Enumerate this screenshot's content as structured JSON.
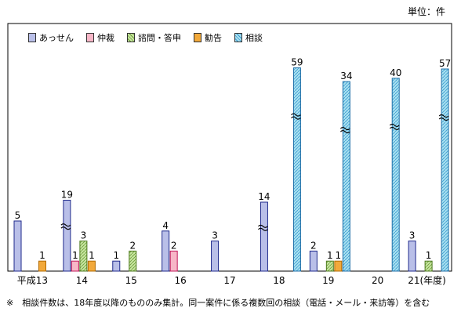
{
  "unit_label": "単位：件",
  "note": "※　相談件数は、18年度以降のもののみ集計。同一案件に係る複数回の相談（電話・メール・来訪等）を含む",
  "legend": [
    {
      "name": "あっせん",
      "color": "#b9bfe8"
    },
    {
      "name": "仲裁",
      "color": "#f7b6c7"
    },
    {
      "name": "諮問・答申",
      "color": "#c8e6a0"
    },
    {
      "name": "勧告",
      "color": "#f2a93b"
    },
    {
      "name": "相談",
      "color": "#a8e0f0"
    }
  ],
  "chart_data": {
    "type": "bar",
    "categories": [
      "平成13",
      "14",
      "15",
      "16",
      "17",
      "18",
      "19",
      "20",
      "21(年度)"
    ],
    "series": [
      {
        "name": "あっせん",
        "values": [
          5,
          19,
          1,
          4,
          3,
          14,
          2,
          null,
          3
        ]
      },
      {
        "name": "仲裁",
        "values": [
          null,
          1,
          null,
          2,
          null,
          null,
          null,
          null,
          null
        ]
      },
      {
        "name": "諮問・答申",
        "values": [
          null,
          3,
          2,
          null,
          null,
          null,
          1,
          null,
          1
        ]
      },
      {
        "name": "勧告",
        "values": [
          1,
          1,
          null,
          null,
          null,
          null,
          1,
          null,
          null
        ]
      },
      {
        "name": "相談",
        "values": [
          null,
          null,
          null,
          null,
          null,
          59,
          34,
          40,
          57
        ]
      }
    ],
    "axis_break": true,
    "grid": false,
    "legend_position": "top-left"
  }
}
